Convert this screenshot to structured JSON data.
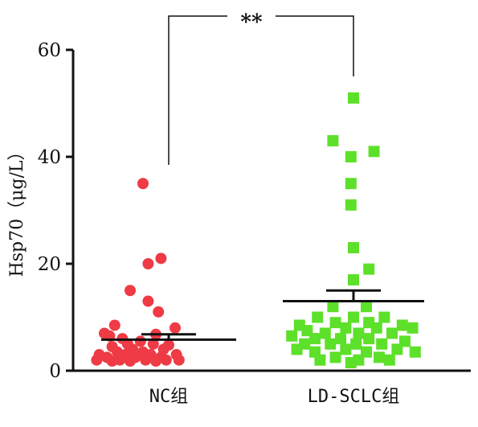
{
  "chart_data": {
    "type": "scatter",
    "ylabel": "Hsp70（μg/L）",
    "ylim": [
      0,
      60
    ],
    "yticks": [
      0,
      20,
      40,
      60
    ],
    "categories": [
      "NC组",
      "LD-SCLC组"
    ],
    "significance": "**",
    "series": [
      {
        "color": "#ee3b45",
        "marker": "circle",
        "mean": 5.8,
        "sem_upper": 6.8,
        "points": [
          {
            "x": -0.2,
            "y": 35
          },
          {
            "x": -0.06,
            "y": 21
          },
          {
            "x": -0.16,
            "y": 20
          },
          {
            "x": -0.3,
            "y": 15
          },
          {
            "x": -0.16,
            "y": 13
          },
          {
            "x": -0.08,
            "y": 11
          },
          {
            "x": -0.42,
            "y": 8.5
          },
          {
            "x": 0.05,
            "y": 8
          },
          {
            "x": -0.5,
            "y": 7
          },
          {
            "x": -0.1,
            "y": 6.8
          },
          {
            "x": -0.46,
            "y": 6.5
          },
          {
            "x": -0.36,
            "y": 6
          },
          {
            "x": -0.22,
            "y": 5.5
          },
          {
            "x": -0.32,
            "y": 5
          },
          {
            "x": -0.12,
            "y": 5
          },
          {
            "x": 0.0,
            "y": 4.8
          },
          {
            "x": -0.44,
            "y": 4.5
          },
          {
            "x": -0.28,
            "y": 4
          },
          {
            "x": -0.04,
            "y": 4
          },
          {
            "x": -0.4,
            "y": 3.5
          },
          {
            "x": -0.2,
            "y": 3.5
          },
          {
            "x": -0.54,
            "y": 3
          },
          {
            "x": -0.34,
            "y": 3
          },
          {
            "x": -0.14,
            "y": 3
          },
          {
            "x": 0.06,
            "y": 3
          },
          {
            "x": -0.48,
            "y": 2.5
          },
          {
            "x": -0.26,
            "y": 2.5
          },
          {
            "x": -0.06,
            "y": 2.5
          },
          {
            "x": -0.56,
            "y": 2
          },
          {
            "x": -0.38,
            "y": 2
          },
          {
            "x": -0.18,
            "y": 2
          },
          {
            "x": -0.02,
            "y": 2
          },
          {
            "x": 0.08,
            "y": 2
          },
          {
            "x": -0.44,
            "y": 1.8
          },
          {
            "x": -0.3,
            "y": 1.8
          },
          {
            "x": -0.1,
            "y": 1.8
          }
        ]
      },
      {
        "color": "#5de02a",
        "marker": "square",
        "mean": 13,
        "sem_upper": 15,
        "points": [
          {
            "x": 0.0,
            "y": 51
          },
          {
            "x": -0.16,
            "y": 43
          },
          {
            "x": -0.02,
            "y": 40
          },
          {
            "x": 0.16,
            "y": 41
          },
          {
            "x": -0.02,
            "y": 35
          },
          {
            "x": -0.02,
            "y": 31
          },
          {
            "x": 0.0,
            "y": 23
          },
          {
            "x": 0.12,
            "y": 19
          },
          {
            "x": 0.0,
            "y": 17
          },
          {
            "x": -0.16,
            "y": 12
          },
          {
            "x": 0.1,
            "y": 12
          },
          {
            "x": -0.28,
            "y": 10
          },
          {
            "x": 0.0,
            "y": 10
          },
          {
            "x": 0.24,
            "y": 10
          },
          {
            "x": -0.42,
            "y": 8.5
          },
          {
            "x": -0.14,
            "y": 9
          },
          {
            "x": 0.12,
            "y": 9
          },
          {
            "x": 0.38,
            "y": 8.5
          },
          {
            "x": -0.36,
            "y": 7.5
          },
          {
            "x": -0.06,
            "y": 8
          },
          {
            "x": 0.18,
            "y": 8
          },
          {
            "x": 0.46,
            "y": 8
          },
          {
            "x": -0.48,
            "y": 6.5
          },
          {
            "x": -0.22,
            "y": 7
          },
          {
            "x": 0.04,
            "y": 7
          },
          {
            "x": 0.3,
            "y": 7
          },
          {
            "x": -0.3,
            "y": 6
          },
          {
            "x": -0.1,
            "y": 6
          },
          {
            "x": 0.12,
            "y": 6
          },
          {
            "x": 0.4,
            "y": 5.5
          },
          {
            "x": -0.38,
            "y": 5
          },
          {
            "x": -0.18,
            "y": 5
          },
          {
            "x": 0.02,
            "y": 5
          },
          {
            "x": 0.22,
            "y": 5
          },
          {
            "x": -0.44,
            "y": 4
          },
          {
            "x": -0.06,
            "y": 4
          },
          {
            "x": 0.34,
            "y": 4
          },
          {
            "x": -0.3,
            "y": 3.5
          },
          {
            "x": 0.1,
            "y": 3.5
          },
          {
            "x": 0.48,
            "y": 3.5
          },
          {
            "x": -0.14,
            "y": 2.5
          },
          {
            "x": 0.2,
            "y": 2.5
          },
          {
            "x": -0.26,
            "y": 2
          },
          {
            "x": 0.04,
            "y": 2
          },
          {
            "x": 0.28,
            "y": 2
          },
          {
            "x": -0.02,
            "y": 1.5
          }
        ]
      }
    ]
  }
}
